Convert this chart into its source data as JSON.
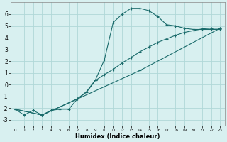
{
  "title": "",
  "xlabel": "Humidex (Indice chaleur)",
  "ylabel": "",
  "bg_color": "#d8f0f0",
  "grid_color": "#b0d8d8",
  "line_color": "#1a6b6b",
  "xlim": [
    -0.5,
    23.5
  ],
  "ylim": [
    -3.5,
    7.0
  ],
  "yticks": [
    -3,
    -2,
    -1,
    0,
    1,
    2,
    3,
    4,
    5,
    6
  ],
  "xticks": [
    0,
    1,
    2,
    3,
    4,
    5,
    6,
    7,
    8,
    9,
    10,
    11,
    12,
    13,
    14,
    15,
    16,
    17,
    18,
    19,
    20,
    21,
    22,
    23
  ],
  "curve1_x": [
    0,
    1,
    2,
    3,
    4,
    5,
    6,
    7,
    8,
    9,
    10,
    11,
    12,
    13,
    14,
    15,
    16,
    17,
    18,
    19,
    20,
    21,
    22,
    23
  ],
  "curve1_y": [
    -2.1,
    -2.6,
    -2.2,
    -2.6,
    -2.2,
    -2.1,
    -2.1,
    -1.2,
    -0.6,
    0.4,
    2.1,
    5.3,
    6.0,
    6.5,
    6.5,
    6.3,
    5.8,
    5.1,
    5.0,
    4.8,
    4.7,
    4.7,
    4.7,
    4.7
  ],
  "curve2_x": [
    0,
    3,
    7,
    8,
    9,
    10,
    11,
    12,
    13,
    14,
    15,
    16,
    17,
    18,
    19,
    20,
    21,
    22,
    23
  ],
  "curve2_y": [
    -2.1,
    -2.6,
    -1.2,
    -0.65,
    0.35,
    0.85,
    1.3,
    1.85,
    2.3,
    2.8,
    3.2,
    3.6,
    3.9,
    4.2,
    4.45,
    4.6,
    4.75,
    4.8,
    4.8
  ],
  "curve3_x": [
    0,
    3,
    14,
    23
  ],
  "curve3_y": [
    -2.1,
    -2.6,
    1.2,
    4.8
  ]
}
